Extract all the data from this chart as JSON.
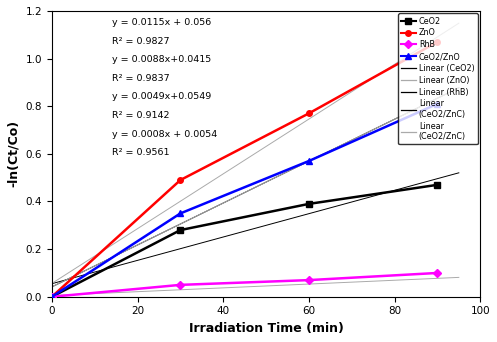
{
  "title": "",
  "xlabel": "Irradiation Time (min)",
  "ylabel": "-ln(Ct/Co)",
  "xlim": [
    0,
    100
  ],
  "ylim": [
    0,
    1.2
  ],
  "xticks": [
    0,
    20,
    40,
    60,
    80,
    100
  ],
  "yticks": [
    0,
    0.2,
    0.4,
    0.6,
    0.8,
    1.0,
    1.2
  ],
  "series": {
    "CeO2": {
      "x": [
        0,
        30,
        60,
        90
      ],
      "y": [
        0,
        0.28,
        0.39,
        0.47
      ],
      "color": "#000000",
      "marker": "s",
      "markersize": 4,
      "linewidth": 1.8,
      "linear_slope": 0.0049,
      "linear_intercept": 0.0549
    },
    "ZnO": {
      "x": [
        0,
        30,
        60,
        90
      ],
      "y": [
        0,
        0.49,
        0.77,
        1.07
      ],
      "color": "#ff0000",
      "marker": "o",
      "markersize": 4,
      "linewidth": 1.8,
      "linear_slope": 0.0115,
      "linear_intercept": 0.056
    },
    "RhB": {
      "x": [
        0,
        30,
        60,
        90
      ],
      "y": [
        0,
        0.05,
        0.07,
        0.1
      ],
      "color": "#ff00ff",
      "marker": "D",
      "markersize": 4,
      "linewidth": 1.8,
      "linear_slope": 0.0008,
      "linear_intercept": 0.0054
    },
    "CeO2/ZnO": {
      "x": [
        0,
        30,
        60,
        90
      ],
      "y": [
        0,
        0.35,
        0.57,
        0.81
      ],
      "color": "#0000ff",
      "marker": "^",
      "markersize": 4,
      "linewidth": 1.8,
      "linear_slope": 0.0088,
      "linear_intercept": 0.0415
    }
  },
  "linear_colors": [
    "#000000",
    "#aaaaaa",
    "#000000",
    "#aaaaaa",
    "#aaaaaa"
  ],
  "eq_lines": [
    [
      "y = 0.0115x + 0.056",
      "R² = 0.9827"
    ],
    [
      "y = 0.0088x+0.0415",
      "R² = 0.9837"
    ],
    [
      "y = 0.0049x+0.0549",
      "R² = 0.9142"
    ],
    [
      "y = 0.0008x + 0.0054",
      "R² = 0.9561"
    ]
  ],
  "eq_positions": [
    [
      0.14,
      0.975
    ],
    [
      0.14,
      0.845
    ],
    [
      0.14,
      0.715
    ],
    [
      0.14,
      0.585
    ]
  ],
  "legend_labels": [
    "CeO2",
    "ZnO",
    "RhB",
    "CeO2/ZnO",
    "Linear (CeO2)",
    "Linear (ZnO)",
    "Linear (RhB)",
    "Linear\n(CeO2/ZnC)",
    "Linear\n(CeO2/ZnC)"
  ],
  "background_color": "#ffffff",
  "font_size": 8
}
